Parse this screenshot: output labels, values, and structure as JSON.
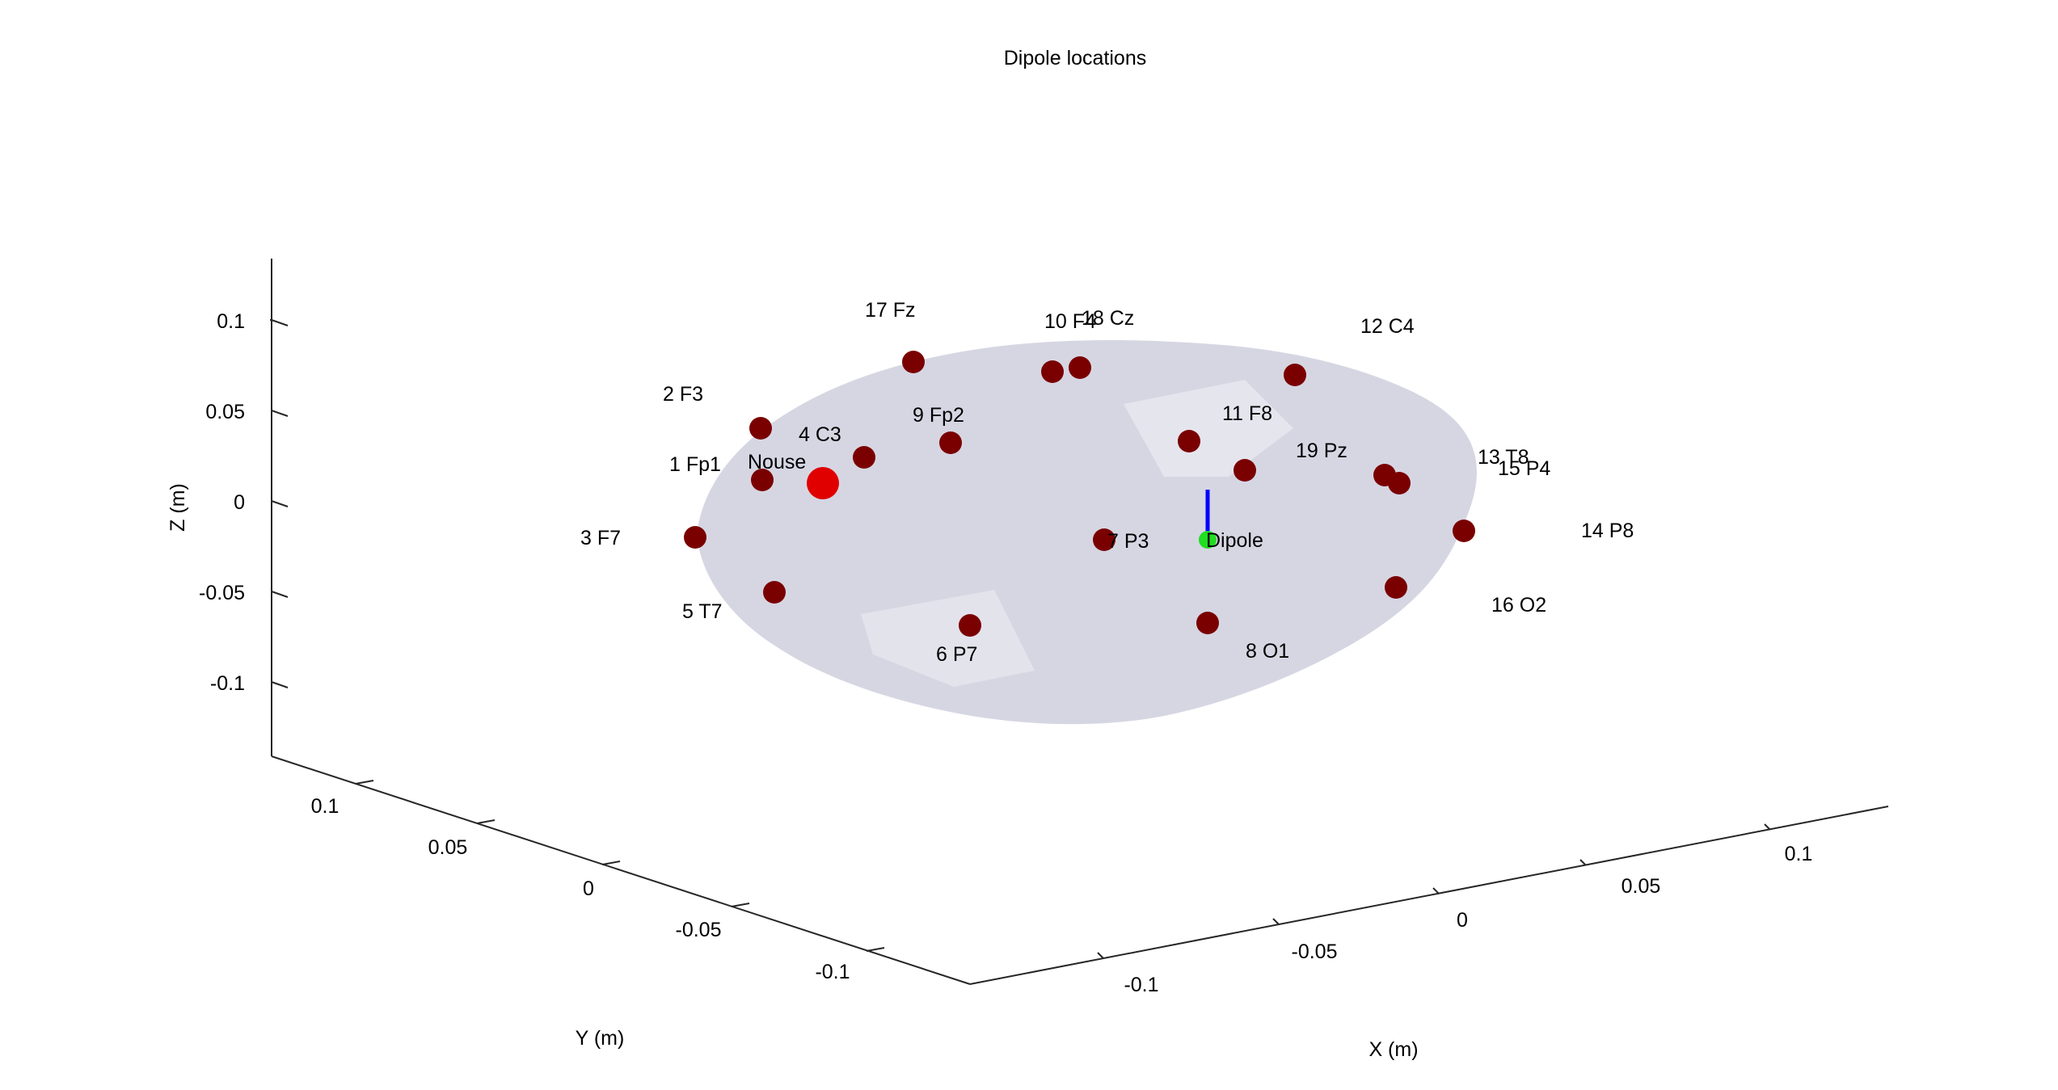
{
  "chart_data": {
    "type": "scatter3d",
    "title": "Dipole locations",
    "xlabel": "X (m)",
    "ylabel": "Y (m)",
    "zlabel": "Z (m)",
    "xlim": [
      -0.13,
      0.13
    ],
    "ylim": [
      -0.13,
      0.13
    ],
    "zlim": [
      -0.13,
      0.13
    ],
    "x_ticks": [
      -0.1,
      -0.05,
      0,
      0.05,
      0.1
    ],
    "x_tick_labels": [
      "-0.1",
      "-0.05",
      "0",
      "0.05",
      "0.1"
    ],
    "y_ticks": [
      -0.1,
      -0.05,
      0,
      0.05,
      0.1
    ],
    "y_tick_labels": [
      "-0.1",
      "-0.05",
      "0",
      "0.05",
      "0.1"
    ],
    "z_ticks": [
      -0.1,
      -0.05,
      0,
      0.05,
      0.1
    ],
    "z_tick_labels": [
      "-0.1",
      "-0.05",
      "0",
      "0.05",
      "0.1"
    ],
    "grid": false,
    "head_surface_color": "#d6d6e3",
    "electrode_color": "#7a0000",
    "nose_color": "#e00000",
    "dipole_color": "#22dd22",
    "dipole_moment_color": "#0000ff",
    "electrodes": [
      {
        "label": "1 Fp1",
        "x": -0.04,
        "y": 0.08,
        "z": 0.02
      },
      {
        "label": "2 F3",
        "x": -0.05,
        "y": 0.07,
        "z": 0.05
      },
      {
        "label": "3 F7",
        "x": -0.08,
        "y": 0.06,
        "z": 0.0
      },
      {
        "label": "4 C3",
        "x": -0.03,
        "y": 0.05,
        "z": 0.05
      },
      {
        "label": "5 T7",
        "x": -0.09,
        "y": 0.02,
        "z": 0.0
      },
      {
        "label": "6 P7",
        "x": -0.06,
        "y": -0.05,
        "z": 0.01
      },
      {
        "label": "7 P3",
        "x": -0.02,
        "y": -0.03,
        "z": 0.06
      },
      {
        "label": "8 O1",
        "x": -0.02,
        "y": -0.08,
        "z": 0.02
      },
      {
        "label": "9 Fp2",
        "x": 0.01,
        "y": 0.07,
        "z": 0.05
      },
      {
        "label": "10 F4",
        "x": 0.03,
        "y": 0.07,
        "z": 0.08
      },
      {
        "label": "11 F8",
        "x": 0.06,
        "y": 0.04,
        "z": 0.06
      },
      {
        "label": "12 C4",
        "x": 0.07,
        "y": 0.05,
        "z": 0.09
      },
      {
        "label": "13 T8",
        "x": 0.09,
        "y": 0.01,
        "z": 0.04
      },
      {
        "label": "14 P8",
        "x": 0.09,
        "y": -0.04,
        "z": 0.02
      },
      {
        "label": "15 P4",
        "x": 0.08,
        "y": -0.02,
        "z": 0.04
      },
      {
        "label": "16 O2",
        "x": 0.05,
        "y": -0.07,
        "z": 0.01
      },
      {
        "label": "17 Fz",
        "x": 0.0,
        "y": 0.1,
        "z": 0.08
      },
      {
        "label": "18 Cz",
        "x": 0.04,
        "y": 0.06,
        "z": 0.09
      },
      {
        "label": "19 Pz",
        "x": 0.05,
        "y": -0.01,
        "z": 0.06
      }
    ],
    "nose": {
      "label": "Nouse",
      "x": -0.04,
      "y": 0.07,
      "z": 0.01
    },
    "dipole": {
      "label": "Dipole",
      "x": 0.0,
      "y": 0.0,
      "z": 0.0,
      "moment": [
        0,
        0,
        0.02
      ]
    }
  }
}
